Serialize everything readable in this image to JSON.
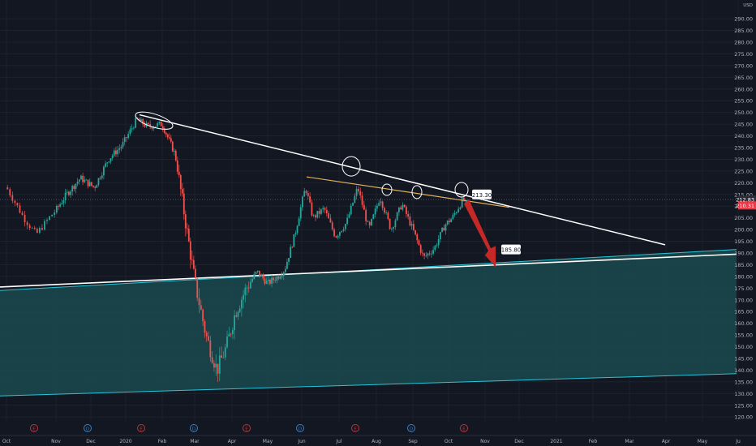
{
  "chart_data": {
    "type": "candlestick",
    "title": "",
    "currency": "USD",
    "x_ticks": [
      "Oct",
      "Nov",
      "Dec",
      "2020",
      "Feb",
      "Mar",
      "Apr",
      "May",
      "Jun",
      "Jul",
      "Aug",
      "Sep",
      "Oct",
      "Nov",
      "Dec",
      "2021",
      "Feb",
      "Mar",
      "Apr",
      "May",
      "Ju"
    ],
    "y_ticks": [
      120,
      125,
      130,
      135,
      140,
      145,
      150,
      155,
      160,
      165,
      170,
      175,
      180,
      185,
      190,
      195,
      200,
      205,
      210,
      215,
      220,
      225,
      230,
      235,
      240,
      245,
      250,
      255,
      260,
      265,
      270,
      275,
      280,
      285,
      290
    ],
    "ylim": [
      118,
      298
    ],
    "price_labels": [
      {
        "text": "212.83",
        "value": 212.83,
        "color": "#2a2e39"
      },
      {
        "text": "210.31",
        "value": 210.31,
        "color": "#f23645"
      }
    ],
    "price_line": 212.83,
    "callouts": [
      {
        "text": "213.30",
        "value": 213.3
      },
      {
        "text": "185.80",
        "value": 185.8
      }
    ],
    "event_markers": [
      {
        "letter": "E",
        "kind": "earnings"
      },
      {
        "letter": "D",
        "kind": "dividend"
      },
      {
        "letter": "E",
        "kind": "earnings"
      },
      {
        "letter": "D",
        "kind": "dividend"
      },
      {
        "letter": "E",
        "kind": "earnings"
      },
      {
        "letter": "D",
        "kind": "dividend"
      },
      {
        "letter": "E",
        "kind": "earnings"
      },
      {
        "letter": "D",
        "kind": "dividend"
      },
      {
        "letter": "E",
        "kind": "earnings"
      }
    ],
    "colors": {
      "background": "#131722",
      "up": "#26a69a",
      "down": "#ef5350",
      "grid": "#1e222d",
      "trendline": "#ffffff",
      "channel": "#26c6da",
      "channel_fill": "#1a4a4d",
      "flag_line": "#e0b05a",
      "arrow": "#c62828"
    }
  }
}
